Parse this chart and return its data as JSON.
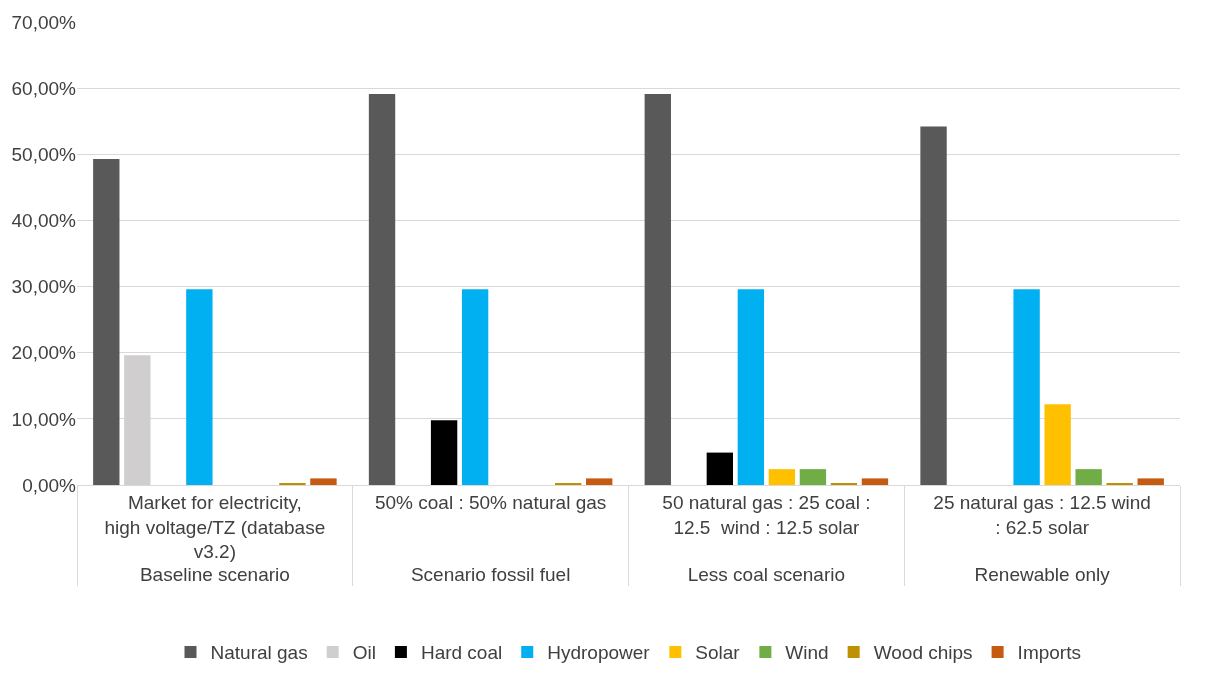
{
  "chart_data": {
    "type": "bar",
    "categories": [
      "Market for electricity, high voltage/TZ (database v3.2)",
      "50% coal : 50% natural gas",
      "50 natural gas : 25 coal : 12.5  wind : 12.5 solar",
      "25 natural gas : 12.5 wind : 62.5 solar"
    ],
    "annotations": [
      "Baseline scenario",
      "Scenario fossil fuel",
      "Less coal scenario",
      "Renewable only"
    ],
    "series": [
      {
        "name": "Natural gas",
        "color": "#595959",
        "values": [
          49.3,
          59.1,
          59.1,
          54.2
        ]
      },
      {
        "name": "Oil",
        "color": "#d0cece",
        "values": [
          19.6,
          0,
          0,
          0
        ]
      },
      {
        "name": "Hard coal",
        "color": "#000000",
        "values": [
          0,
          9.8,
          4.9,
          0
        ]
      },
      {
        "name": "Hydropower",
        "color": "#00b0f0",
        "values": [
          29.6,
          29.6,
          29.6,
          29.6
        ]
      },
      {
        "name": "Solar",
        "color": "#ffc000",
        "values": [
          0,
          0,
          2.4,
          12.2
        ]
      },
      {
        "name": "Wind",
        "color": "#70ad47",
        "values": [
          0,
          0,
          2.4,
          2.4
        ]
      },
      {
        "name": "Wood chips",
        "color": "#bf9000",
        "values": [
          0.2,
          0.2,
          0.2,
          0.2
        ]
      },
      {
        "name": "Imports",
        "color": "#c55a11",
        "values": [
          1.0,
          1.0,
          1.0,
          1.0
        ]
      }
    ],
    "ylim": [
      0,
      70
    ],
    "yticks": [
      {
        "value": 0,
        "label": "0,00%"
      },
      {
        "value": 10,
        "label": "10,00%"
      },
      {
        "value": 20,
        "label": "20,00%"
      },
      {
        "value": 30,
        "label": "30,00%"
      },
      {
        "value": 40,
        "label": "40,00%"
      },
      {
        "value": 50,
        "label": "50,00%"
      },
      {
        "value": 60,
        "label": "60,00%"
      },
      {
        "value": 70,
        "label": "70,00%"
      }
    ],
    "grid": "y",
    "legend": "bottom"
  }
}
